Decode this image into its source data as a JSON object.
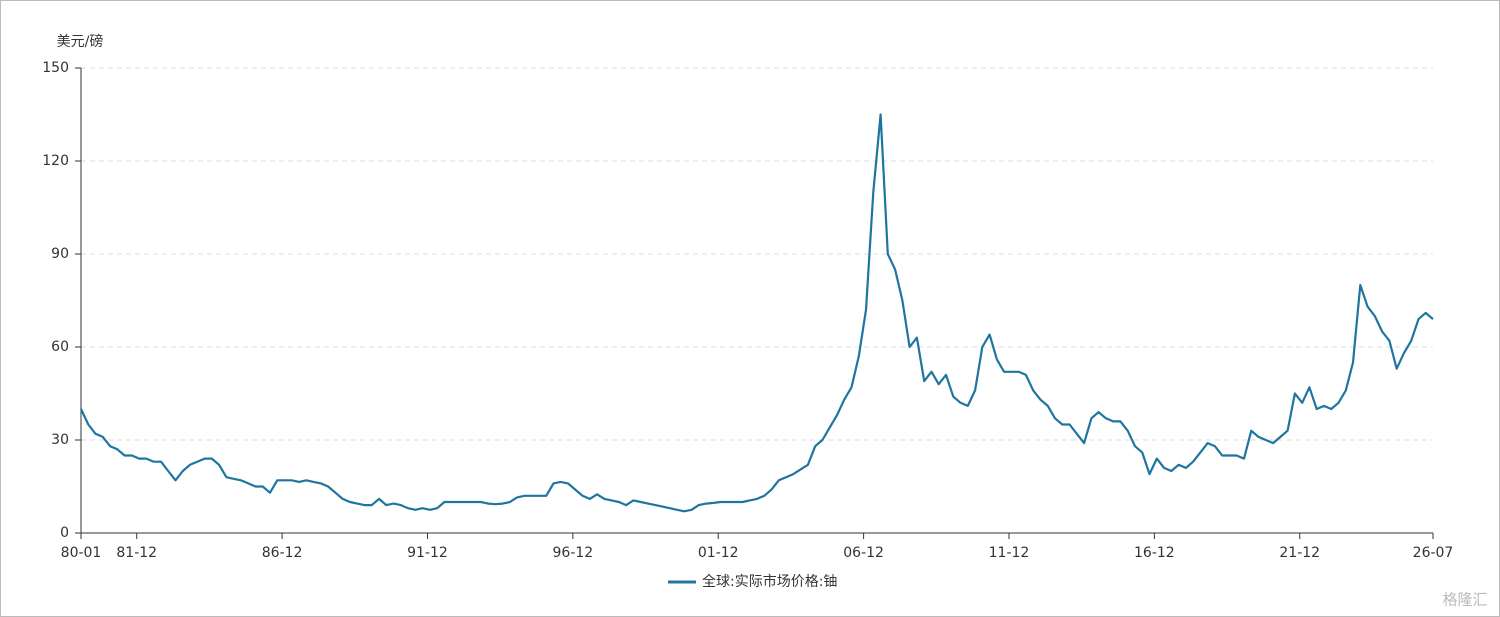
{
  "chart_data": {
    "type": "line",
    "y_label": "美元/磅",
    "watermark": "格隆汇",
    "ylim": [
      0,
      150
    ],
    "yticks": [
      0,
      30,
      60,
      90,
      120,
      150
    ],
    "grid": true,
    "xticks": [
      "80-01",
      "81-12",
      "86-12",
      "91-12",
      "96-12",
      "01-12",
      "06-12",
      "11-12",
      "16-12",
      "21-12",
      "26-07"
    ],
    "x": [
      "80-01",
      "80-04",
      "80-07",
      "80-10",
      "81-01",
      "81-04",
      "81-07",
      "81-10",
      "82-01",
      "82-04",
      "82-07",
      "82-10",
      "83-01",
      "83-04",
      "83-07",
      "83-10",
      "84-01",
      "84-04",
      "84-07",
      "84-10",
      "85-01",
      "85-04",
      "85-07",
      "85-10",
      "86-01",
      "86-04",
      "86-07",
      "86-10",
      "87-01",
      "87-04",
      "87-07",
      "87-10",
      "88-01",
      "88-04",
      "88-07",
      "88-10",
      "89-01",
      "89-04",
      "89-07",
      "89-10",
      "90-01",
      "90-04",
      "90-07",
      "90-10",
      "91-01",
      "91-04",
      "91-07",
      "91-10",
      "92-01",
      "92-04",
      "92-07",
      "92-10",
      "93-01",
      "93-04",
      "93-07",
      "93-10",
      "94-01",
      "94-04",
      "94-07",
      "94-10",
      "95-01",
      "95-04",
      "95-07",
      "95-10",
      "96-01",
      "96-04",
      "96-07",
      "96-10",
      "97-01",
      "97-04",
      "97-07",
      "97-10",
      "98-01",
      "98-04",
      "98-07",
      "98-10",
      "99-01",
      "99-04",
      "99-07",
      "99-10",
      "00-01",
      "00-04",
      "00-07",
      "00-10",
      "01-01",
      "01-04",
      "01-07",
      "01-10",
      "02-01",
      "02-04",
      "02-07",
      "02-10",
      "03-01",
      "03-04",
      "03-07",
      "03-10",
      "04-01",
      "04-04",
      "04-07",
      "04-10",
      "05-01",
      "05-04",
      "05-07",
      "05-10",
      "06-01",
      "06-04",
      "06-07",
      "06-10",
      "07-01",
      "07-04",
      "07-07",
      "07-10",
      "08-01",
      "08-04",
      "08-07",
      "08-10",
      "09-01",
      "09-04",
      "09-07",
      "09-10",
      "10-01",
      "10-04",
      "10-07",
      "10-10",
      "11-01",
      "11-04",
      "11-07",
      "11-10",
      "12-01",
      "12-04",
      "12-07",
      "12-10",
      "13-01",
      "13-04",
      "13-07",
      "13-10",
      "14-01",
      "14-04",
      "14-07",
      "14-10",
      "15-01",
      "15-04",
      "15-07",
      "15-10",
      "16-01",
      "16-04",
      "16-07",
      "16-10",
      "17-01",
      "17-04",
      "17-07",
      "17-10",
      "18-01",
      "18-04",
      "18-07",
      "18-10",
      "19-01",
      "19-04",
      "19-07",
      "19-10",
      "20-01",
      "20-04",
      "20-07",
      "20-10",
      "21-01",
      "21-04",
      "21-07",
      "21-10",
      "22-01",
      "22-04",
      "22-07",
      "22-10",
      "23-01",
      "23-04",
      "23-07",
      "23-10",
      "24-01",
      "24-04",
      "24-07",
      "24-10",
      "25-01",
      "25-04",
      "25-07",
      "25-10",
      "26-01",
      "26-04",
      "26-07"
    ],
    "series": [
      {
        "name": "全球:实际市场价格:铀",
        "color": "#1f75a0",
        "values": [
          40,
          35,
          32,
          31,
          28,
          27,
          25,
          25,
          24,
          24,
          23,
          23,
          20,
          17,
          20,
          22,
          23,
          24,
          24,
          22,
          18,
          17.5,
          17,
          16,
          15,
          15,
          13,
          17,
          17,
          17,
          16.5,
          17,
          16.5,
          16,
          15,
          13,
          11,
          10,
          9.5,
          9,
          9,
          11,
          9,
          9.5,
          9,
          8,
          7.5,
          8,
          7.5,
          8,
          10,
          10,
          10,
          10,
          10,
          10,
          9.5,
          9.3,
          9.5,
          10,
          11.5,
          12,
          12,
          12,
          12,
          16,
          16.5,
          16,
          14,
          12,
          11,
          12.5,
          11,
          10.5,
          10,
          9,
          10.5,
          10,
          9.5,
          9,
          8.5,
          8,
          7.5,
          7,
          7.5,
          9,
          9.5,
          9.7,
          10,
          10,
          10,
          10,
          10.5,
          11,
          12,
          14,
          17,
          18,
          19,
          20.5,
          22,
          28,
          30,
          34,
          38,
          43,
          47,
          57,
          72,
          110,
          135,
          90,
          85,
          75,
          60,
          63,
          49,
          52,
          48,
          51,
          44,
          42,
          41,
          46,
          60,
          64,
          56,
          52,
          52,
          52,
          51,
          46,
          43,
          41,
          37,
          35,
          35,
          32,
          29,
          37,
          39,
          37,
          36,
          36,
          33,
          28,
          26,
          19,
          24,
          21,
          20,
          22,
          21,
          23,
          26,
          29,
          28,
          25,
          25,
          25,
          24,
          33,
          31,
          30,
          29,
          31,
          33,
          45,
          42,
          47,
          40,
          41,
          40,
          42,
          46,
          55,
          80,
          73,
          70,
          65,
          62,
          53,
          58,
          62,
          69,
          71,
          69
        ]
      }
    ]
  }
}
